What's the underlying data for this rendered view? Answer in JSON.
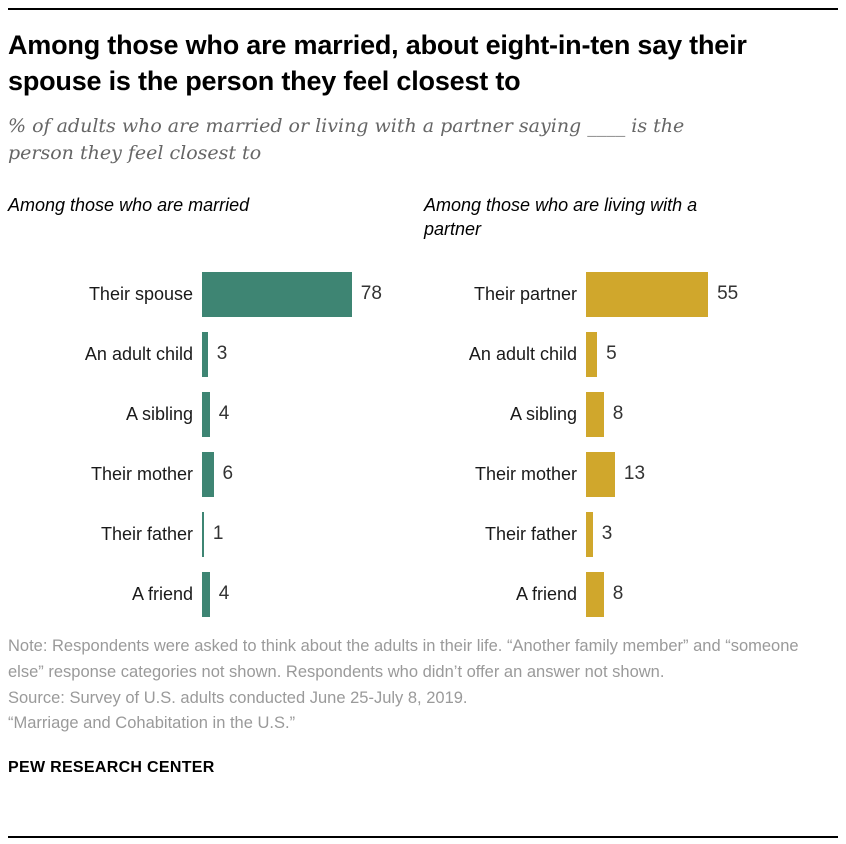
{
  "header": {
    "title": "Among those who are married, about eight-in-ten say their spouse is the person they feel closest to",
    "subtitle": "% of adults who are married or living with a partner saying ____ is the person they feel closest to"
  },
  "chart_data": [
    {
      "type": "bar",
      "orientation": "horizontal",
      "title": "Among those who are married",
      "categories": [
        "Their spouse",
        "An adult child",
        "A sibling",
        "Their mother",
        "Their father",
        "A friend"
      ],
      "values": [
        78,
        3,
        4,
        6,
        1,
        4
      ],
      "color": "#3e8573",
      "xlim": [
        0,
        100
      ],
      "grid": false,
      "legend": "none",
      "value_labels": true
    },
    {
      "type": "bar",
      "orientation": "horizontal",
      "title": "Among those who are living with a partner",
      "categories": [
        "Their partner",
        "An adult child",
        "A sibling",
        "Their mother",
        "Their father",
        "A friend"
      ],
      "values": [
        55,
        5,
        8,
        13,
        3,
        8
      ],
      "color": "#d0a72c",
      "xlim": [
        0,
        100
      ],
      "grid": false,
      "legend": "none",
      "value_labels": true
    }
  ],
  "footer": {
    "note": "Note: Respondents were asked to think about the adults in their life. “Another family member” and “someone else” response categories not shown. Respondents who didn’t offer an answer not shown.",
    "source": "Source: Survey of U.S. adults conducted June 25-July 8, 2019.",
    "report": "“Marriage and Cohabitation in the U.S.”",
    "brand": "PEW RESEARCH CENTER"
  }
}
